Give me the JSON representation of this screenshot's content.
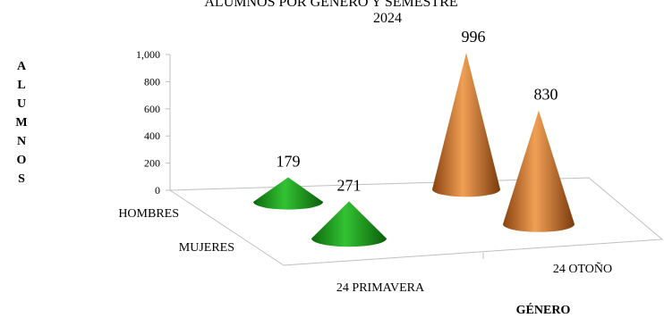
{
  "chart_data": {
    "type": "bar",
    "title_top": "ALUMNOS POR GÉNERO Y SEMESTRE",
    "title": "2024",
    "ylabel": "ALUMNOS",
    "xlabel": "GÉNERO",
    "ylim": [
      0,
      1000
    ],
    "yticks": [
      "0",
      "200",
      "400",
      "600",
      "800",
      "1,000"
    ],
    "categories": [
      "24 PRIMAVERA",
      "24 OTOÑO"
    ],
    "series": [
      {
        "name": "HOMBRES",
        "values": [
          179,
          996
        ]
      },
      {
        "name": "MUJERES",
        "values": [
          271,
          830
        ]
      }
    ],
    "data_labels": [
      [
        "179",
        "996"
      ],
      [
        "271",
        "830"
      ]
    ],
    "colors": {
      "primavera": "#1e9b1e",
      "otono": "#c0651c"
    },
    "shape": "cone",
    "grid": false
  }
}
